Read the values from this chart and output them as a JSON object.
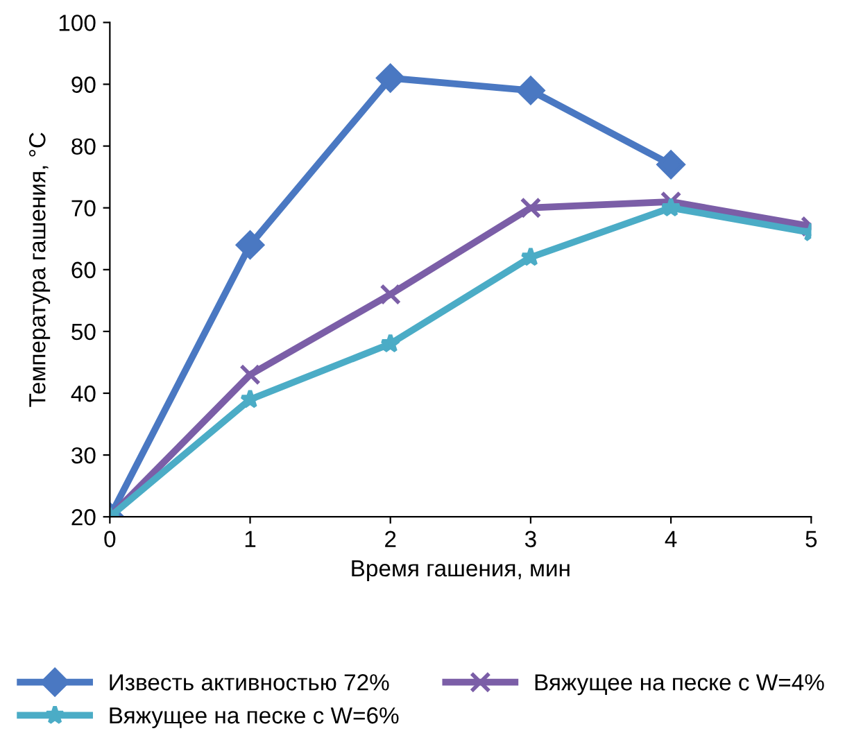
{
  "chart_data": {
    "type": "line",
    "xlabel": "Время гашения, мин",
    "ylabel": "Температура гашения, °C",
    "xlim": [
      0,
      5
    ],
    "xticks": [
      0,
      1,
      2,
      3,
      4,
      5
    ],
    "ylim": [
      20,
      100
    ],
    "yticks": [
      20,
      30,
      40,
      50,
      60,
      70,
      80,
      90,
      100
    ],
    "grid": false,
    "legend": "bottom",
    "line_style": "solid",
    "series": [
      {
        "name": "Известь активностью 72%",
        "color": "#4a78c2",
        "marker": "diamond",
        "x": [
          0,
          1,
          2,
          3,
          4
        ],
        "values": [
          20,
          64,
          91,
          89,
          77
        ]
      },
      {
        "name": "Вяжущее на песке с W=4%",
        "color": "#7b5ea7",
        "marker": "cross",
        "x": [
          0,
          1,
          2,
          3,
          4,
          5
        ],
        "values": [
          20,
          43,
          56,
          70,
          71,
          67
        ]
      },
      {
        "name": "Вяжущее на песке с W=6%",
        "color": "#4bacc6",
        "marker": "star",
        "x": [
          0,
          1,
          2,
          3,
          4,
          5
        ],
        "values": [
          20,
          39,
          48,
          62,
          70,
          66
        ]
      }
    ]
  }
}
